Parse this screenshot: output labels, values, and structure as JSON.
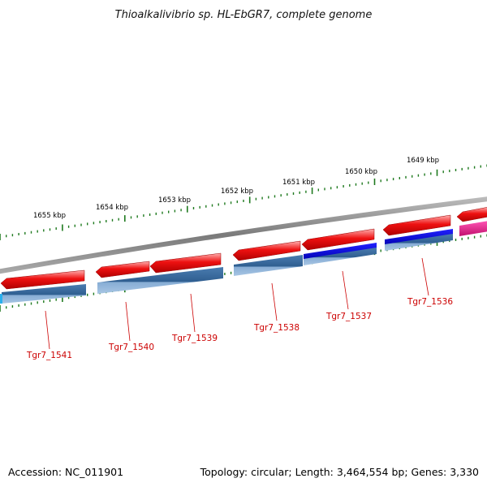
{
  "title": "Thioalkalivibrio sp. HL-EbGR7, complete genome",
  "footer": {
    "accession": "Accession: NC_011901",
    "summary": "Topology: circular; Length: 3,464,554 bp; Genes: 3,330"
  },
  "colors": {
    "backbone": "#888888",
    "cds_forward": "#ee1111",
    "cds_gene_track": "#3a6ea5",
    "cds_highlight": "#0000dd",
    "cds_magenta": "#e8208f",
    "cds_cyan": "#2ab0ee",
    "tick": "#1f7a1f",
    "label": "#cc0000"
  },
  "scale_labels": [
    "1655 kbp",
    "1654 kbp",
    "1653 kbp",
    "1652 kbp",
    "1651 kbp",
    "1650 kbp",
    "1649 kbp"
  ],
  "gene_labels": [
    "Tgr7_1541",
    "Tgr7_1540",
    "Tgr7_1539",
    "Tgr7_1538",
    "Tgr7_1537",
    "Tgr7_1536"
  ]
}
